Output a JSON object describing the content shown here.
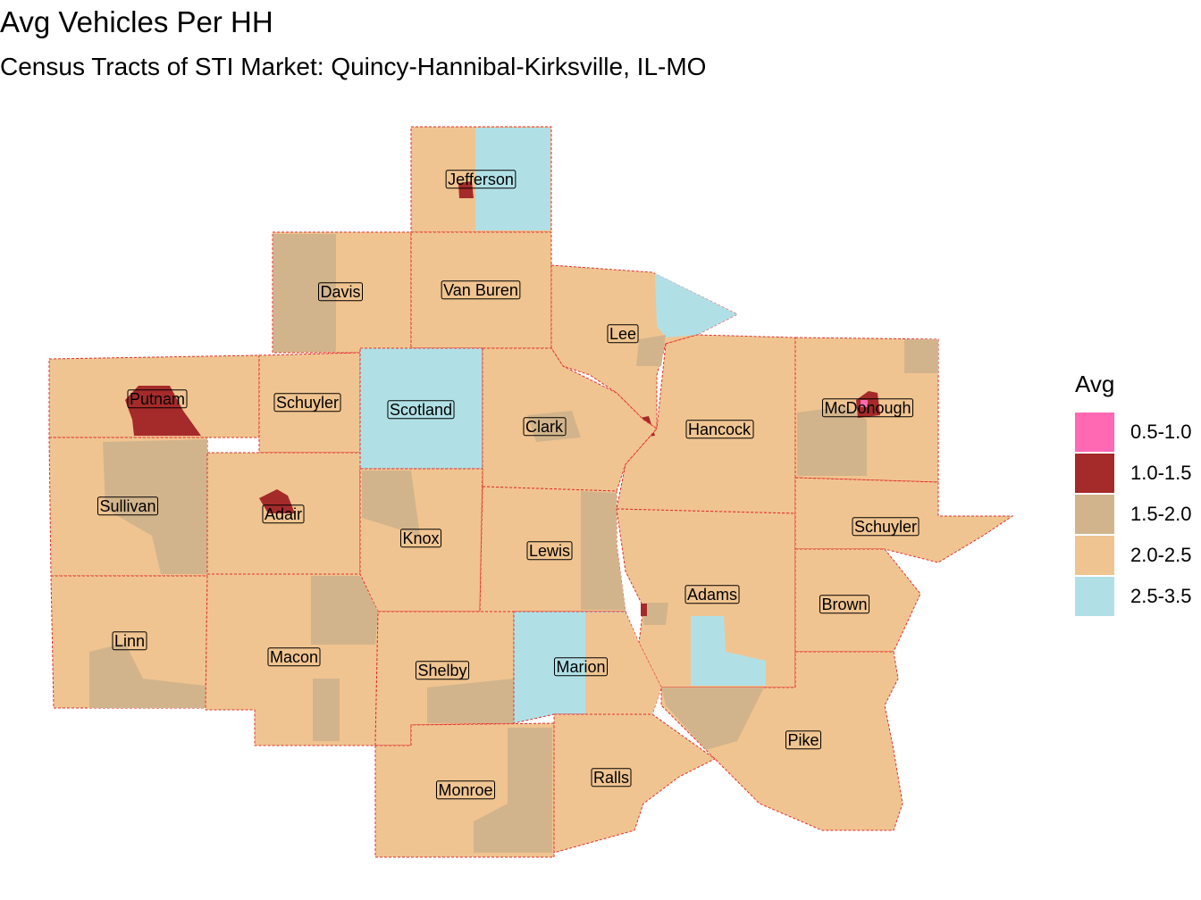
{
  "header": {
    "title": "Avg Vehicles Per HH",
    "subtitle": "Census Tracts of STI Market: Quincy-Hannibal-Kirksville, IL-MO"
  },
  "legend": {
    "title": "Avg",
    "items": [
      {
        "label": "0.5-1.0",
        "color": "#ff69b4"
      },
      {
        "label": "1.0-1.5",
        "color": "#a52a2a"
      },
      {
        "label": "1.5-2.0",
        "color": "#d2b48c"
      },
      {
        "label": "2.0-2.5",
        "color": "#f0c490"
      },
      {
        "label": "2.5-3.5",
        "color": "#b0e0e6"
      }
    ]
  },
  "counties": [
    {
      "label": "Jefferson"
    },
    {
      "label": "Davis"
    },
    {
      "label": "Van Buren"
    },
    {
      "label": "Lee"
    },
    {
      "label": "Putnam"
    },
    {
      "label": "Schuyler"
    },
    {
      "label": "Scotland"
    },
    {
      "label": "Clark"
    },
    {
      "label": "Hancock"
    },
    {
      "label": "McDonough"
    },
    {
      "label": "Sullivan"
    },
    {
      "label": "Adair"
    },
    {
      "label": "Knox"
    },
    {
      "label": "Lewis"
    },
    {
      "label": "Schuyler"
    },
    {
      "label": "Adams"
    },
    {
      "label": "Brown"
    },
    {
      "label": "Linn"
    },
    {
      "label": "Macon"
    },
    {
      "label": "Shelby"
    },
    {
      "label": "Marion"
    },
    {
      "label": "Pike"
    },
    {
      "label": "Monroe"
    },
    {
      "label": "Ralls"
    }
  ]
}
